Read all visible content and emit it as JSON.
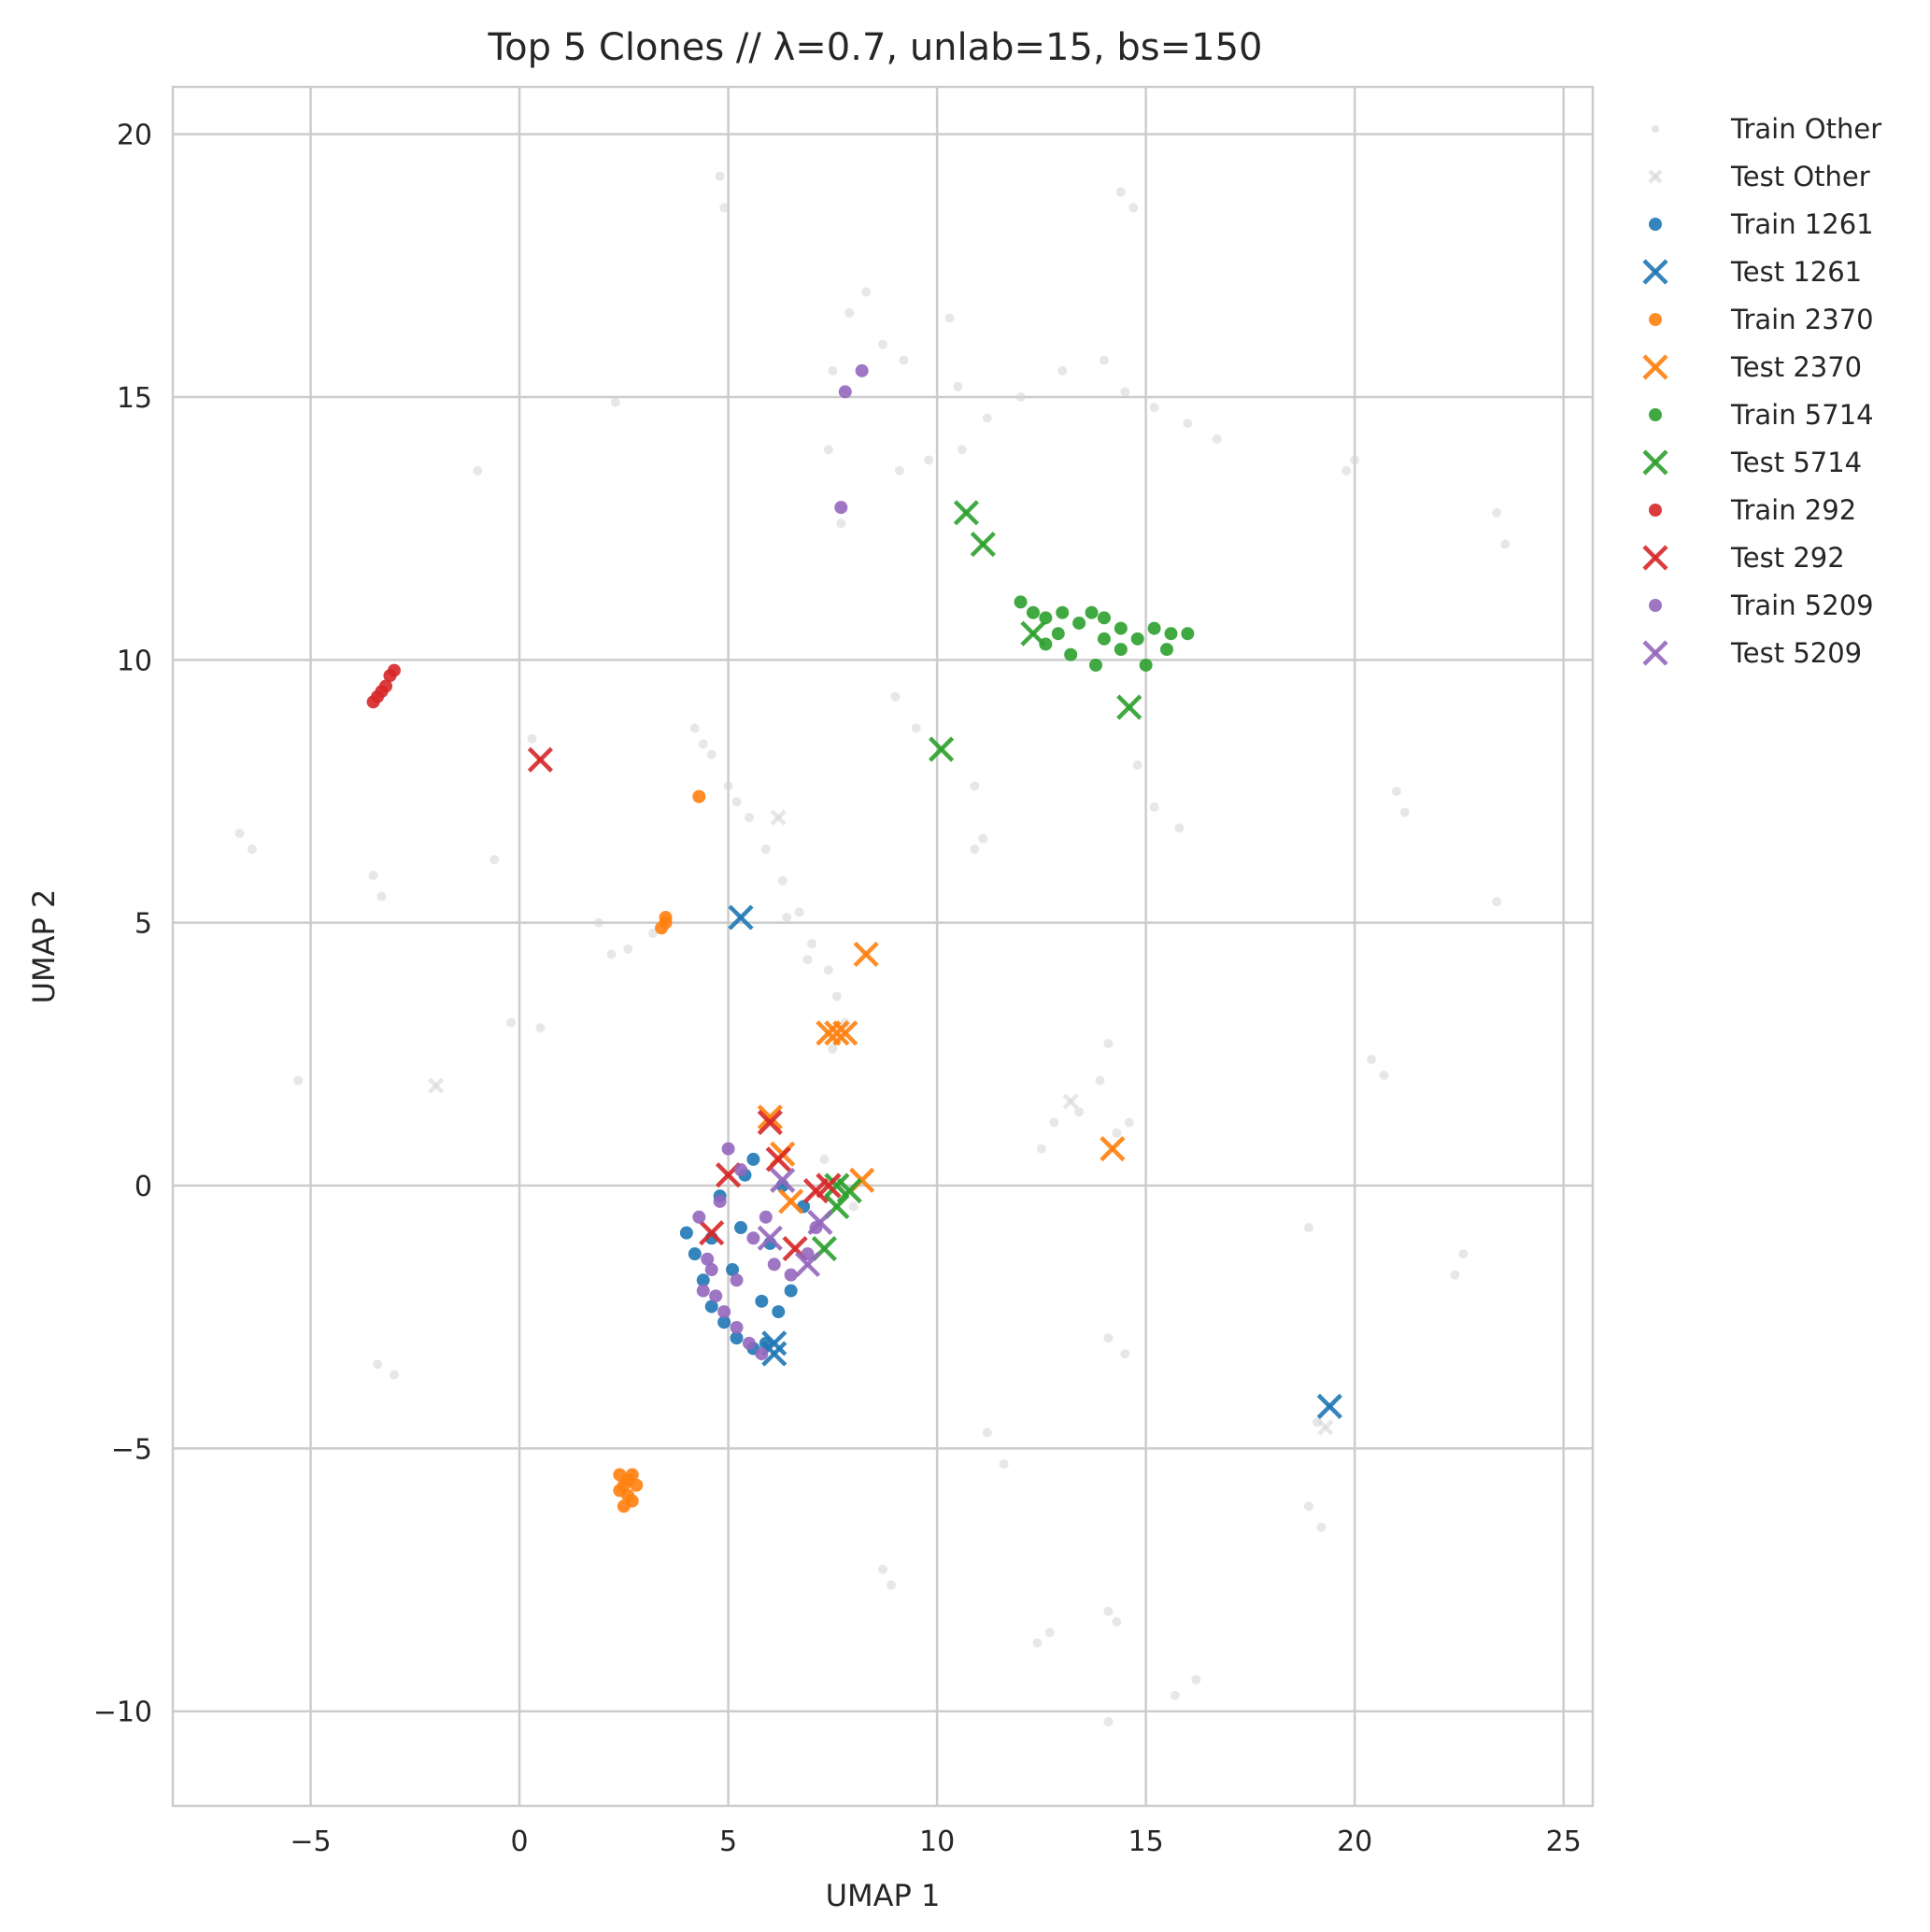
{
  "chart_data": {
    "type": "scatter",
    "title": "Top 5 Clones // λ=0.7, unlab=15, bs=150",
    "xlabel": "UMAP 1",
    "ylabel": "UMAP 2",
    "xlim": [
      -8.3,
      25.7
    ],
    "ylim": [
      -11.8,
      20.9
    ],
    "xticks": [
      -5,
      0,
      5,
      10,
      15,
      20,
      25
    ],
    "yticks": [
      -10,
      -5,
      0,
      5,
      10,
      15,
      20
    ],
    "xtick_labels": [
      "−5",
      "0",
      "5",
      "10",
      "15",
      "20",
      "25"
    ],
    "ytick_labels": [
      "−10",
      "−5",
      "0",
      "5",
      "10",
      "15",
      "20"
    ],
    "grid": true,
    "legend_position": "outside-top-right",
    "series": [
      {
        "name": "Train Other",
        "marker": "dot",
        "color": "#d3d3d3",
        "points": [
          [
            4.2,
            8.7
          ],
          [
            4.6,
            8.2
          ],
          [
            5.0,
            7.6
          ],
          [
            5.5,
            7.0
          ],
          [
            5.9,
            6.4
          ],
          [
            6.3,
            5.8
          ],
          [
            6.7,
            5.2
          ],
          [
            7.0,
            4.6
          ],
          [
            7.4,
            4.1
          ],
          [
            7.6,
            3.6
          ],
          [
            7.8,
            3.1
          ],
          [
            7.5,
            2.6
          ],
          [
            6.4,
            5.1
          ],
          [
            6.9,
            4.3
          ],
          [
            5.2,
            7.3
          ],
          [
            4.4,
            8.4
          ],
          [
            3.2,
            4.8
          ],
          [
            2.6,
            4.5
          ],
          [
            2.2,
            4.4
          ],
          [
            1.9,
            5.0
          ],
          [
            0.3,
            8.5
          ],
          [
            0.5,
            3.0
          ],
          [
            -0.2,
            3.1
          ],
          [
            -0.6,
            6.2
          ],
          [
            -1.0,
            13.6
          ],
          [
            -3.5,
            5.9
          ],
          [
            -3.3,
            5.5
          ],
          [
            -6.7,
            6.7
          ],
          [
            -6.4,
            6.4
          ],
          [
            -5.3,
            2.0
          ],
          [
            -3.4,
            -3.4
          ],
          [
            -3.0,
            -3.6
          ],
          [
            2.3,
            14.9
          ],
          [
            4.8,
            19.2
          ],
          [
            4.9,
            18.6
          ],
          [
            7.4,
            14.0
          ],
          [
            7.7,
            12.6
          ],
          [
            7.5,
            15.5
          ],
          [
            7.9,
            16.6
          ],
          [
            8.3,
            17.0
          ],
          [
            8.7,
            16.0
          ],
          [
            9.2,
            15.7
          ],
          [
            9.1,
            13.6
          ],
          [
            9.8,
            13.8
          ],
          [
            10.3,
            16.5
          ],
          [
            10.5,
            15.2
          ],
          [
            10.6,
            14.0
          ],
          [
            11.2,
            14.6
          ],
          [
            12.0,
            15.0
          ],
          [
            13.0,
            15.5
          ],
          [
            14.0,
            15.7
          ],
          [
            14.5,
            15.1
          ],
          [
            15.2,
            14.8
          ],
          [
            16.0,
            14.5
          ],
          [
            16.7,
            14.2
          ],
          [
            9.0,
            9.3
          ],
          [
            9.5,
            8.7
          ],
          [
            10.9,
            6.4
          ],
          [
            11.1,
            6.6
          ],
          [
            10.9,
            7.6
          ],
          [
            14.4,
            18.9
          ],
          [
            14.7,
            18.6
          ],
          [
            14.8,
            8.0
          ],
          [
            15.2,
            7.2
          ],
          [
            15.8,
            6.8
          ],
          [
            12.8,
            1.2
          ],
          [
            13.4,
            1.4
          ],
          [
            13.9,
            2.0
          ],
          [
            14.1,
            2.7
          ],
          [
            14.3,
            1.0
          ],
          [
            14.6,
            1.2
          ],
          [
            12.5,
            0.7
          ],
          [
            14.5,
            -3.2
          ],
          [
            14.1,
            -2.9
          ],
          [
            20.0,
            13.8
          ],
          [
            19.8,
            13.6
          ],
          [
            21.0,
            7.5
          ],
          [
            21.2,
            7.1
          ],
          [
            23.4,
            12.8
          ],
          [
            23.6,
            12.2
          ],
          [
            23.4,
            5.4
          ],
          [
            20.4,
            2.4
          ],
          [
            20.7,
            2.1
          ],
          [
            18.9,
            -0.8
          ],
          [
            22.6,
            -1.3
          ],
          [
            22.4,
            -1.7
          ],
          [
            19.1,
            -4.5
          ],
          [
            18.9,
            -6.1
          ],
          [
            19.2,
            -6.5
          ],
          [
            8.7,
            -7.3
          ],
          [
            8.9,
            -7.6
          ],
          [
            11.2,
            -4.7
          ],
          [
            11.6,
            -5.3
          ],
          [
            12.4,
            -8.7
          ],
          [
            12.7,
            -8.5
          ],
          [
            14.1,
            -8.1
          ],
          [
            14.3,
            -8.3
          ],
          [
            14.1,
            -10.2
          ],
          [
            15.7,
            -9.7
          ],
          [
            16.2,
            -9.4
          ],
          [
            7.3,
            0.5
          ],
          [
            7.7,
            0.0
          ],
          [
            8.0,
            -0.4
          ]
        ]
      },
      {
        "name": "Test Other",
        "marker": "x",
        "color": "#d3d3d3",
        "points": [
          [
            -2.0,
            1.9
          ],
          [
            6.2,
            7.0
          ],
          [
            13.2,
            1.6
          ],
          [
            19.3,
            -4.6
          ]
        ]
      },
      {
        "name": "Train 1261",
        "marker": "dot",
        "color": "#1f77b4",
        "points": [
          [
            4.0,
            -0.9
          ],
          [
            4.2,
            -1.3
          ],
          [
            4.4,
            -1.8
          ],
          [
            4.6,
            -2.3
          ],
          [
            4.9,
            -2.6
          ],
          [
            5.2,
            -2.9
          ],
          [
            5.6,
            -3.1
          ],
          [
            5.9,
            -3.0
          ],
          [
            6.2,
            -2.4
          ],
          [
            6.5,
            -2.0
          ],
          [
            4.8,
            -0.2
          ],
          [
            5.4,
            0.2
          ],
          [
            5.6,
            0.5
          ],
          [
            6.3,
            0.0
          ],
          [
            6.8,
            -0.4
          ],
          [
            4.6,
            -1.0
          ],
          [
            5.1,
            -1.6
          ],
          [
            5.8,
            -2.2
          ],
          [
            6.0,
            -1.1
          ],
          [
            5.3,
            -0.8
          ]
        ]
      },
      {
        "name": "Test 1261",
        "marker": "x",
        "color": "#1f77b4",
        "points": [
          [
            5.3,
            5.1
          ],
          [
            19.4,
            -4.2
          ],
          [
            6.1,
            -3.0
          ],
          [
            6.1,
            -3.2
          ]
        ]
      },
      {
        "name": "Train 2370",
        "marker": "dot",
        "color": "#ff7f0e",
        "points": [
          [
            2.4,
            -5.5
          ],
          [
            2.5,
            -5.7
          ],
          [
            2.6,
            -5.9
          ],
          [
            2.5,
            -6.1
          ],
          [
            2.7,
            -6.0
          ],
          [
            2.8,
            -5.7
          ],
          [
            2.6,
            -5.6
          ],
          [
            2.4,
            -5.8
          ],
          [
            2.7,
            -5.5
          ],
          [
            3.4,
            4.9
          ],
          [
            3.5,
            5.0
          ],
          [
            3.5,
            5.1
          ],
          [
            4.3,
            7.4
          ]
        ]
      },
      {
        "name": "Test 2370",
        "marker": "x",
        "color": "#ff7f0e",
        "points": [
          [
            8.3,
            4.4
          ],
          [
            7.4,
            2.9
          ],
          [
            7.6,
            2.9
          ],
          [
            7.8,
            2.9
          ],
          [
            14.2,
            0.7
          ],
          [
            6.0,
            1.3
          ],
          [
            6.3,
            0.6
          ],
          [
            8.2,
            0.1
          ],
          [
            6.5,
            -0.3
          ]
        ]
      },
      {
        "name": "Train 5714",
        "marker": "dot",
        "color": "#2ca02c",
        "points": [
          [
            12.0,
            11.1
          ],
          [
            12.3,
            10.9
          ],
          [
            12.6,
            10.8
          ],
          [
            13.0,
            10.9
          ],
          [
            13.4,
            10.7
          ],
          [
            13.7,
            10.9
          ],
          [
            14.0,
            10.8
          ],
          [
            14.4,
            10.6
          ],
          [
            14.8,
            10.4
          ],
          [
            15.2,
            10.6
          ],
          [
            15.6,
            10.5
          ],
          [
            16.0,
            10.5
          ],
          [
            12.6,
            10.3
          ],
          [
            13.2,
            10.1
          ],
          [
            13.8,
            9.9
          ],
          [
            14.4,
            10.2
          ],
          [
            15.0,
            9.9
          ],
          [
            15.5,
            10.2
          ],
          [
            14.0,
            10.4
          ],
          [
            12.9,
            10.5
          ]
        ]
      },
      {
        "name": "Test 5714",
        "marker": "x",
        "color": "#2ca02c",
        "points": [
          [
            10.7,
            12.8
          ],
          [
            11.1,
            12.2
          ],
          [
            12.3,
            10.5
          ],
          [
            14.6,
            9.1
          ],
          [
            10.1,
            8.3
          ],
          [
            7.9,
            -0.1
          ],
          [
            7.6,
            -0.4
          ],
          [
            7.3,
            -1.2
          ],
          [
            7.6,
            0.0
          ]
        ]
      },
      {
        "name": "Train 292",
        "marker": "dot",
        "color": "#d62728",
        "points": [
          [
            -3.5,
            9.2
          ],
          [
            -3.4,
            9.3
          ],
          [
            -3.3,
            9.4
          ],
          [
            -3.2,
            9.5
          ],
          [
            -3.1,
            9.7
          ],
          [
            -3.0,
            9.8
          ]
        ]
      },
      {
        "name": "Test 292",
        "marker": "x",
        "color": "#d62728",
        "points": [
          [
            0.5,
            8.1
          ],
          [
            6.0,
            1.2
          ],
          [
            6.2,
            0.5
          ],
          [
            5.0,
            0.2
          ],
          [
            4.6,
            -0.9
          ],
          [
            6.6,
            -1.2
          ],
          [
            7.1,
            -0.1
          ],
          [
            7.4,
            0.0
          ]
        ]
      },
      {
        "name": "Train 5209",
        "marker": "dot",
        "color": "#9467bd",
        "points": [
          [
            7.8,
            15.1
          ],
          [
            8.2,
            15.5
          ],
          [
            7.7,
            12.9
          ],
          [
            4.3,
            -0.6
          ],
          [
            4.5,
            -1.4
          ],
          [
            4.7,
            -2.1
          ],
          [
            4.9,
            -2.4
          ],
          [
            5.2,
            -2.7
          ],
          [
            5.5,
            -3.0
          ],
          [
            5.8,
            -3.2
          ],
          [
            5.0,
            0.7
          ],
          [
            5.3,
            0.3
          ],
          [
            4.8,
            -0.3
          ],
          [
            5.6,
            -1.0
          ],
          [
            6.1,
            -1.5
          ],
          [
            6.5,
            -1.7
          ],
          [
            6.9,
            -1.3
          ],
          [
            7.1,
            -0.8
          ],
          [
            5.2,
            -1.8
          ],
          [
            4.6,
            -1.6
          ],
          [
            5.9,
            -0.6
          ],
          [
            4.4,
            -2.0
          ]
        ]
      },
      {
        "name": "Test 5209",
        "marker": "x",
        "color": "#9467bd",
        "points": [
          [
            6.3,
            0.1
          ],
          [
            6.9,
            -1.5
          ],
          [
            7.2,
            -0.7
          ],
          [
            6.0,
            -1.0
          ]
        ]
      }
    ]
  }
}
